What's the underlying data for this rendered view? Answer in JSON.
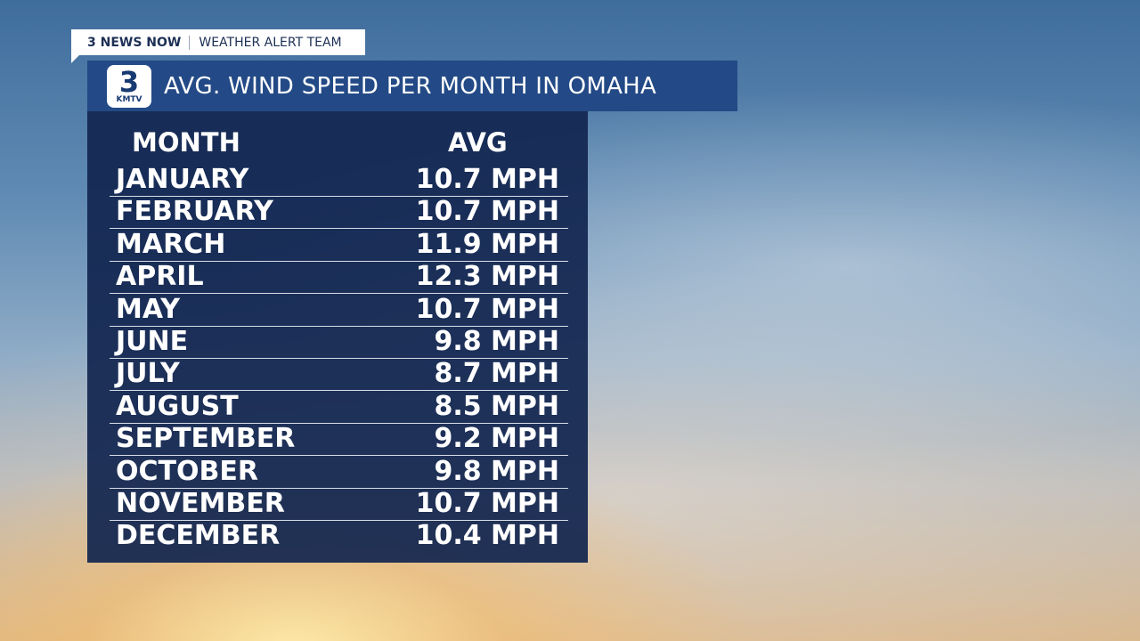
{
  "header": {
    "brand": "3 NEWS NOW",
    "team": "WEATHER ALERT TEAM"
  },
  "logo": {
    "number": "3",
    "station": "KMTV"
  },
  "title": "AVG. WIND SPEED PER MONTH IN OMAHA",
  "table": {
    "columns": [
      "MONTH",
      "AVG"
    ],
    "rows": [
      [
        "JANUARY",
        "10.7 MPH"
      ],
      [
        "FEBRUARY",
        "10.7 MPH"
      ],
      [
        "MARCH",
        "11.9 MPH"
      ],
      [
        "APRIL",
        "12.3 MPH"
      ],
      [
        "MAY",
        "10.7 MPH"
      ],
      [
        "JUNE",
        "9.8 MPH"
      ],
      [
        "JULY",
        "8.7 MPH"
      ],
      [
        "AUGUST",
        "8.5 MPH"
      ],
      [
        "SEPTEMBER",
        "9.2 MPH"
      ],
      [
        "OCTOBER",
        "9.8 MPH"
      ],
      [
        "NOVEMBER",
        "10.7 MPH"
      ],
      [
        "DECEMBER",
        "10.4 MPH"
      ]
    ]
  }
}
